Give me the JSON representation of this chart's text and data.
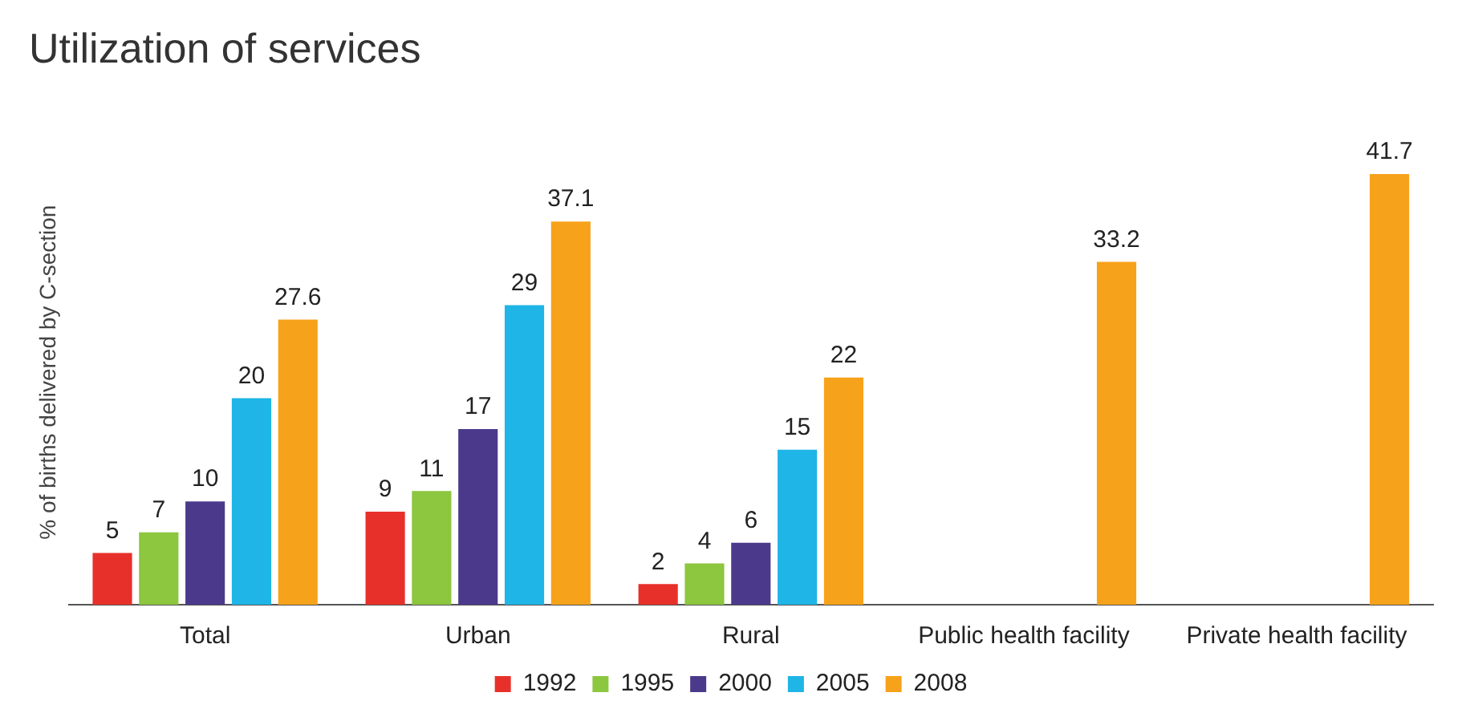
{
  "chart_data": {
    "type": "bar",
    "title": "Utilization of services",
    "ylabel": "% of births delivered by C-section",
    "categories": [
      "Total",
      "Urban",
      "Rural",
      "Public health facility",
      "Private health facility"
    ],
    "series": [
      {
        "name": "1992",
        "color": "#e8302a",
        "values": [
          5,
          9,
          2,
          null,
          null
        ]
      },
      {
        "name": "1995",
        "color": "#8dc63f",
        "values": [
          7,
          11,
          4,
          null,
          null
        ]
      },
      {
        "name": "2000",
        "color": "#4b3a8c",
        "values": [
          10,
          17,
          6,
          null,
          null
        ]
      },
      {
        "name": "2005",
        "color": "#1fb5e6",
        "values": [
          20,
          29,
          15,
          null,
          null
        ]
      },
      {
        "name": "2008",
        "color": "#f7a21b",
        "values": [
          27.6,
          37.1,
          22,
          33.2,
          41.7
        ]
      }
    ],
    "data_labels": true,
    "grid": false,
    "legend": "bottom"
  }
}
